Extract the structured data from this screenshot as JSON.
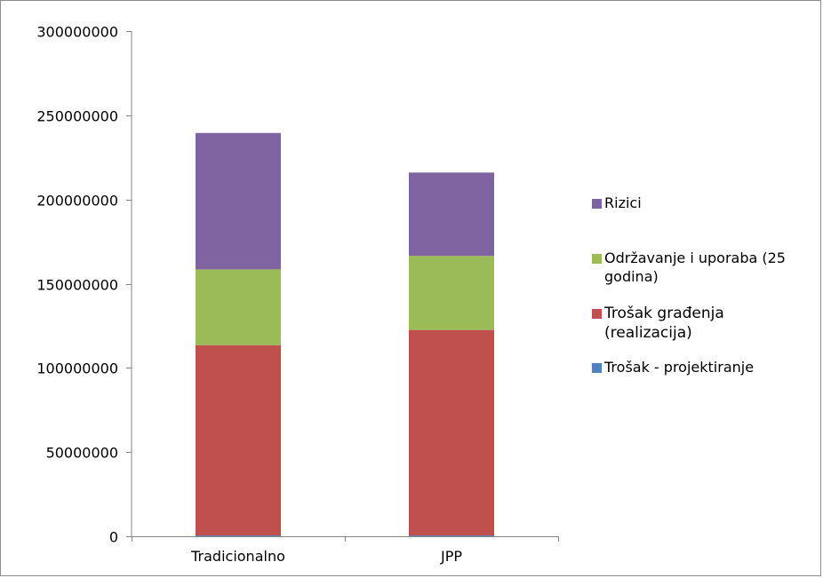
{
  "chart_data": {
    "type": "bar",
    "stacked": true,
    "categories": [
      "Tradicionalno",
      "JPP"
    ],
    "series": [
      {
        "name": "Trošak - projektiranje",
        "color": "#4f81bd",
        "values": [
          500000,
          500000
        ]
      },
      {
        "name": "Trošak građenja (realizacija)",
        "color": "#c0504d",
        "values": [
          113000000,
          122000000
        ]
      },
      {
        "name": "Održavanje i uporaba (25 godina)",
        "color": "#9bbb59",
        "values": [
          45000000,
          44000000
        ]
      },
      {
        "name": "Rizici",
        "color": "#8064a2",
        "values": [
          81000000,
          49500000
        ]
      }
    ],
    "yticks": [
      "0",
      "50000000",
      "100000000",
      "150000000",
      "200000000",
      "250000000",
      "300000000"
    ],
    "ylim": [
      0,
      300000000
    ],
    "legend_position": "right",
    "grid": false
  },
  "legend": {
    "items": [
      {
        "label": "Rizici",
        "color": "#8064a2"
      },
      {
        "label": "Održavanje i uporaba (25\ngodina)",
        "color": "#9bbb59"
      },
      {
        "label": "Trošak građenja\n(realizacija)",
        "color": "#c0504d"
      },
      {
        "label": "Trošak - projektiranje",
        "color": "#4f81bd"
      }
    ]
  }
}
